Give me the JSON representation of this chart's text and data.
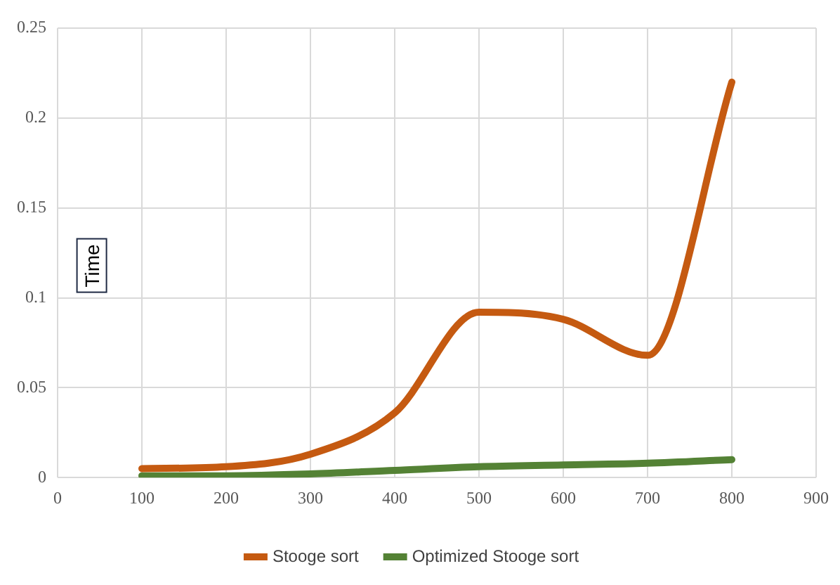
{
  "chart_data": {
    "type": "line",
    "ylabel": "Time",
    "x": [
      100,
      200,
      300,
      400,
      500,
      600,
      700,
      800
    ],
    "series": [
      {
        "name": "Stooge sort",
        "color": "#c55a11",
        "values": [
          0.005,
          0.006,
          0.013,
          0.036,
          0.092,
          0.088,
          0.068,
          0.22
        ]
      },
      {
        "name": "Optimized Stooge sort",
        "color": "#548235",
        "values": [
          0.001,
          0.001,
          0.002,
          0.004,
          0.006,
          0.007,
          0.008,
          0.01
        ]
      }
    ],
    "xlim": [
      0,
      900
    ],
    "xticks": [
      0,
      100,
      200,
      300,
      400,
      500,
      600,
      700,
      800,
      900
    ],
    "ylim": [
      0,
      0.25
    ],
    "yticks": [
      0,
      0.05,
      0.1,
      0.15,
      0.2,
      0.25
    ],
    "grid": true,
    "legend": "bottom",
    "marker": "none",
    "line_style": "solid"
  }
}
